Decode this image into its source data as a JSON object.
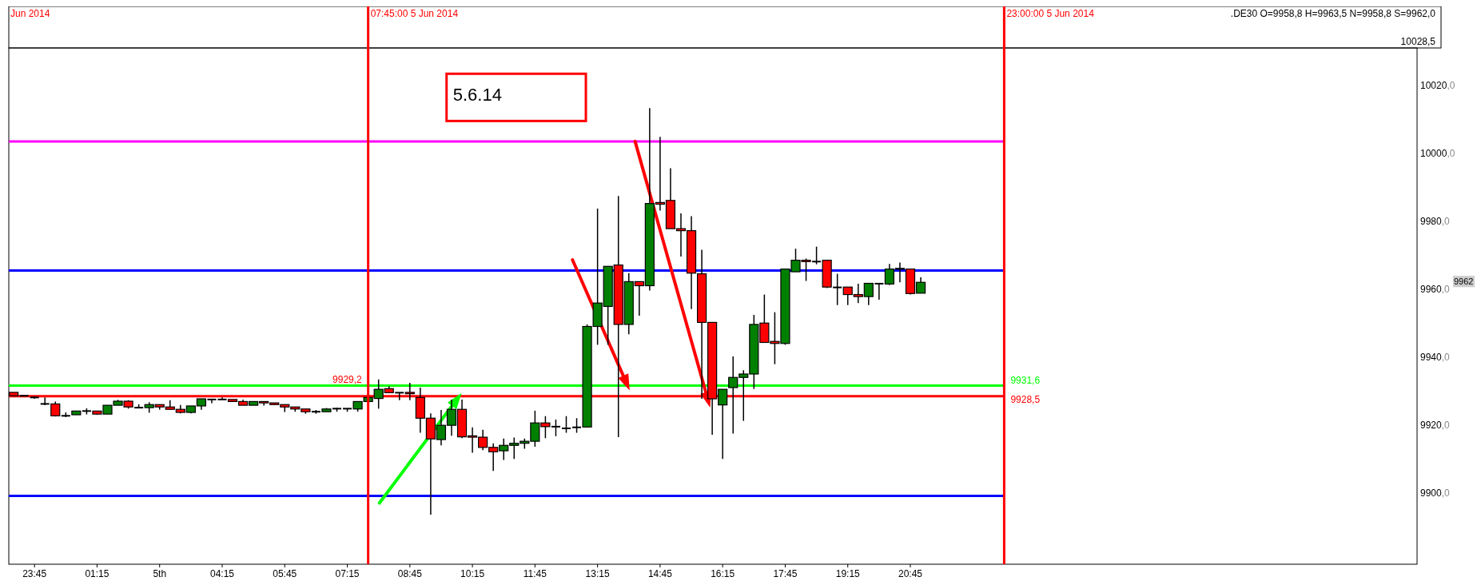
{
  "chart_data": {
    "type": "candlestick",
    "x": [
      "2014-06-04T23:15",
      "2014-06-04T23:30",
      "2014-06-04T23:45",
      "2014-06-05T00:00",
      "2014-06-05T00:15",
      "2014-06-05T00:30",
      "2014-06-05T00:45",
      "2014-06-05T01:00",
      "2014-06-05T01:15",
      "2014-06-05T01:30",
      "2014-06-05T01:45",
      "2014-06-05T02:00",
      "2014-06-05T02:15",
      "2014-06-05T02:30",
      "2014-06-05T02:45",
      "2014-06-05T03:00",
      "2014-06-05T03:15",
      "2014-06-05T03:30",
      "2014-06-05T03:45",
      "2014-06-05T04:00",
      "2014-06-05T04:15",
      "2014-06-05T04:30",
      "2014-06-05T04:45",
      "2014-06-05T05:00",
      "2014-06-05T05:15",
      "2014-06-05T05:30",
      "2014-06-05T05:45",
      "2014-06-05T06:00",
      "2014-06-05T06:15",
      "2014-06-05T06:30",
      "2014-06-05T06:45",
      "2014-06-05T07:00",
      "2014-06-05T07:15",
      "2014-06-05T07:30",
      "2014-06-05T07:45",
      "2014-06-05T08:00",
      "2014-06-05T08:15",
      "2014-06-05T08:30",
      "2014-06-05T08:45",
      "2014-06-05T09:00",
      "2014-06-05T09:15",
      "2014-06-05T09:30",
      "2014-06-05T09:45",
      "2014-06-05T10:00",
      "2014-06-05T10:15",
      "2014-06-05T10:30",
      "2014-06-05T10:45",
      "2014-06-05T11:00",
      "2014-06-05T11:15",
      "2014-06-05T11:30",
      "2014-06-05T11:45",
      "2014-06-05T12:00",
      "2014-06-05T12:15",
      "2014-06-05T12:30",
      "2014-06-05T12:45",
      "2014-06-05T13:00",
      "2014-06-05T13:15",
      "2014-06-05T13:30",
      "2014-06-05T13:45",
      "2014-06-05T14:00",
      "2014-06-05T14:15",
      "2014-06-05T14:30",
      "2014-06-05T14:45",
      "2014-06-05T15:00",
      "2014-06-05T15:15",
      "2014-06-05T15:30",
      "2014-06-05T15:45",
      "2014-06-05T16:00",
      "2014-06-05T16:15",
      "2014-06-05T16:30",
      "2014-06-05T16:45",
      "2014-06-05T17:00",
      "2014-06-05T17:15",
      "2014-06-05T17:30",
      "2014-06-05T17:45",
      "2014-06-05T18:00",
      "2014-06-05T18:15",
      "2014-06-05T18:30",
      "2014-06-05T18:45",
      "2014-06-05T19:00",
      "2014-06-05T19:15",
      "2014-06-05T19:30",
      "2014-06-05T19:45",
      "2014-06-05T20:00",
      "2014-06-05T20:15",
      "2014-06-05T20:30",
      "2014-06-05T20:45",
      "2014-06-05T21:00"
    ],
    "ohlc": [
      [
        9929.6,
        9929.6,
        9928.6,
        9928.6
      ],
      [
        9928.6,
        9928.6,
        9928.6,
        9928.6
      ],
      [
        9928.1,
        9928.5,
        9927.7,
        9928.1
      ],
      [
        9926.2,
        9928.1,
        9925.8,
        9926.2
      ],
      [
        9926.2,
        9926.9,
        9922.5,
        9922.7
      ],
      [
        9922.7,
        9923.7,
        9922.3,
        9922.7
      ],
      [
        9923.0,
        9924.1,
        9923.0,
        9924.1
      ],
      [
        9924.1,
        9924.9,
        9923.1,
        9924.1
      ],
      [
        9924.1,
        9924.1,
        9923.0,
        9923.2
      ],
      [
        9923.2,
        9925.8,
        9923.2,
        9925.8
      ],
      [
        9925.8,
        9927.4,
        9925.8,
        9927.0
      ],
      [
        9927.0,
        9927.3,
        9924.8,
        9925.3
      ],
      [
        9925.1,
        9926.1,
        9925.0,
        9925.1
      ],
      [
        9925.1,
        9926.7,
        9923.6,
        9926.0
      ],
      [
        9926.0,
        9926.0,
        9924.5,
        9925.3
      ],
      [
        9925.3,
        9927.3,
        9924.6,
        9924.6
      ],
      [
        9924.6,
        9925.9,
        9923.4,
        9923.7
      ],
      [
        9923.7,
        9925.6,
        9923.4,
        9925.6
      ],
      [
        9925.6,
        9927.7,
        9924.5,
        9927.7
      ],
      [
        9927.5,
        9927.5,
        9926.4,
        9927.5
      ],
      [
        9927.5,
        9928.1,
        9927.5,
        9927.5
      ],
      [
        9927.5,
        9927.5,
        9926.9,
        9926.9
      ],
      [
        9926.9,
        9927.5,
        9925.8,
        9925.8
      ],
      [
        9925.8,
        9926.9,
        9925.8,
        9926.9
      ],
      [
        9926.9,
        9926.9,
        9925.7,
        9926.5
      ],
      [
        9926.5,
        9926.5,
        9925.8,
        9926.0
      ],
      [
        9926.0,
        9926.0,
        9923.8,
        9925.3
      ],
      [
        9925.3,
        9925.3,
        9923.9,
        9924.7
      ],
      [
        9924.7,
        9924.7,
        9923.3,
        9923.9
      ],
      [
        9923.9,
        9924.4,
        9923.3,
        9923.9
      ],
      [
        9923.9,
        9925.0,
        9923.9,
        9924.7
      ],
      [
        9924.8,
        9925.1,
        9923.9,
        9924.8
      ],
      [
        9924.8,
        9924.8,
        9923.9,
        9924.8
      ],
      [
        9924.7,
        9926.9,
        9923.9,
        9926.9
      ],
      [
        9926.9,
        9928.4,
        9926.9,
        9928.1
      ],
      [
        9927.8,
        9933.4,
        9924.8,
        9930.5
      ],
      [
        9930.7,
        9931.4,
        9929.5,
        9929.5
      ],
      [
        9929.5,
        9929.5,
        9927.3,
        9929.5
      ],
      [
        9929.6,
        9932.4,
        9927.3,
        9929.2
      ],
      [
        9928.1,
        9931.0,
        9917.7,
        9922.0
      ],
      [
        9922.0,
        9923.4,
        9893.6,
        9915.9
      ],
      [
        9915.7,
        9924.4,
        9914.0,
        9919.9
      ],
      [
        9919.9,
        9927.5,
        9916.8,
        9924.6
      ],
      [
        9924.6,
        9927.5,
        9916.1,
        9916.5
      ],
      [
        9916.8,
        9919.3,
        9911.8,
        9916.4
      ],
      [
        9916.4,
        9918.6,
        9912.6,
        9913.4
      ],
      [
        9913.4,
        9914.6,
        9906.5,
        9912.1
      ],
      [
        9912.4,
        9916.0,
        9909.7,
        9914.0
      ],
      [
        9914.0,
        9916.3,
        9910.0,
        9914.6
      ],
      [
        9914.6,
        9916.0,
        9913.0,
        9915.2
      ],
      [
        9915.2,
        9924.2,
        9913.6,
        9920.6
      ],
      [
        9920.6,
        9922.6,
        9916.1,
        9919.5
      ],
      [
        9919.5,
        9921.6,
        9916.7,
        9919.5
      ],
      [
        9919.0,
        9922.6,
        9917.7,
        9919.0
      ],
      [
        9919.3,
        9922.0,
        9917.7,
        9919.3
      ],
      [
        9919.4,
        9949.6,
        9919.3,
        9949.0
      ],
      [
        9949.0,
        9983.7,
        9943.6,
        9955.9
      ],
      [
        9954.9,
        9966.7,
        9943.6,
        9966.7
      ],
      [
        9967.1,
        9987.4,
        9916.4,
        9949.6
      ],
      [
        9949.6,
        9964.7,
        9946.7,
        9962.2
      ],
      [
        9962.2,
        9962.2,
        9952.2,
        9961.0
      ],
      [
        9961.0,
        10013.3,
        9959.6,
        9985.2
      ],
      [
        9985.5,
        10004.8,
        9983.1,
        9985.0
      ],
      [
        9986.1,
        9995.6,
        9977.8,
        9977.8
      ],
      [
        9977.8,
        9982.3,
        9969.6,
        9977.2
      ],
      [
        9977.2,
        9981.5,
        9954.1,
        9964.7
      ],
      [
        9964.5,
        9971.6,
        9927.7,
        9950.2
      ],
      [
        9950.2,
        9950.2,
        9917.1,
        9927.7
      ],
      [
        9925.9,
        9930.5,
        9910.0,
        9930.5
      ],
      [
        9931.0,
        9940.2,
        9917.5,
        9934.0
      ],
      [
        9934.0,
        9936.1,
        9921.2,
        9935.0
      ],
      [
        9935.0,
        9952.4,
        9930.6,
        9949.6
      ],
      [
        9950.0,
        9958.4,
        9944.3,
        9944.3
      ],
      [
        9944.6,
        9953.2,
        9937.9,
        9944.0
      ],
      [
        9944.0,
        9965.9,
        9943.6,
        9965.9
      ],
      [
        9965.1,
        9971.9,
        9965.1,
        9968.5
      ],
      [
        9968.5,
        9969.0,
        9962.4,
        9968.1
      ],
      [
        9968.1,
        9972.5,
        9967.3,
        9968.1
      ],
      [
        9968.5,
        9968.5,
        9960.3,
        9960.6
      ],
      [
        9960.5,
        9964.5,
        9955.3,
        9960.5
      ],
      [
        9960.6,
        9960.6,
        9955.3,
        9958.4
      ],
      [
        9958.4,
        9961.6,
        9955.9,
        9957.8
      ],
      [
        9957.8,
        9961.7,
        9955.3,
        9961.7
      ],
      [
        9961.6,
        9961.6,
        9956.9,
        9961.6
      ],
      [
        9961.5,
        9967.4,
        9961.2,
        9965.9
      ],
      [
        9966.0,
        9967.8,
        9962.0,
        9966.1
      ],
      [
        9965.9,
        9965.9,
        9958.4,
        9958.7
      ],
      [
        9958.8,
        9963.5,
        9958.8,
        9962.0
      ]
    ],
    "xlim": [
      "2014-06-04T23:08",
      "2014-06-06T08:54"
    ],
    "xticks": [
      {
        "value": "2014-06-04T23:45",
        "label": "23:45"
      },
      {
        "value": "2014-06-05T01:15",
        "label": "01:15"
      },
      {
        "value": "2014-06-05T02:45",
        "label": "5th"
      },
      {
        "value": "2014-06-05T04:15",
        "label": "04:15"
      },
      {
        "value": "2014-06-05T05:45",
        "label": "05:45"
      },
      {
        "value": "2014-06-05T07:15",
        "label": "07:15"
      },
      {
        "value": "2014-06-05T08:45",
        "label": "08:45"
      },
      {
        "value": "2014-06-05T10:15",
        "label": "10:15"
      },
      {
        "value": "2014-06-05T11:45",
        "label": "11:45"
      },
      {
        "value": "2014-06-05T13:15",
        "label": "13:15"
      },
      {
        "value": "2014-06-05T14:45",
        "label": "14:45"
      },
      {
        "value": "2014-06-05T16:15",
        "label": "16:15"
      },
      {
        "value": "2014-06-05T17:45",
        "label": "17:45"
      },
      {
        "value": "2014-06-05T19:15",
        "label": "19:15"
      },
      {
        "value": "2014-06-05T20:45",
        "label": "20:45"
      }
    ],
    "ylim": [
      9879,
      10031
    ],
    "yticks": [
      {
        "value": 9900,
        "label": "9900,0"
      },
      {
        "value": 9920,
        "label": "9920,0"
      },
      {
        "value": 9940,
        "label": "9940,0"
      },
      {
        "value": 9960,
        "label": "9960,0"
      },
      {
        "value": 9980,
        "label": "9980,0"
      },
      {
        "value": 10000,
        "label": "10000,0"
      },
      {
        "value": 10020,
        "label": "10020,0"
      }
    ],
    "ref_lines": [
      {
        "axis": "x",
        "value": "2014-06-05T07:45",
        "label": "07:45:00 5 Jun 2014",
        "color": "#ff0000"
      },
      {
        "axis": "x",
        "value": "2014-06-05T23:00",
        "label": "23:00:00 5 Jun 2014",
        "color": "#ff0000"
      },
      {
        "axis": "y",
        "value": 10003.5,
        "label": null,
        "color": "#ff00ff"
      },
      {
        "axis": "y",
        "value": 9965.5,
        "label": null,
        "color": "#0000ff"
      },
      {
        "axis": "y",
        "value": 9931.6,
        "label": "9931,6",
        "color": "#00ff00"
      },
      {
        "axis": "y",
        "value": 9928.5,
        "label": "9928,5",
        "color": "#ff0000"
      },
      {
        "axis": "y",
        "value": 9899.1,
        "label": null,
        "color": "#0000ff"
      }
    ],
    "annotations": [
      "5.6.14",
      ".DE30 O=9958,8 H=9963,5 N=9958,8 S=9962,0",
      "10028,5",
      "9962",
      {
        "text": "9929,2",
        "x": "2014-06-05T07:36",
        "y": 9929.2
      },
      "Jun 2014"
    ],
    "grid": false
  }
}
